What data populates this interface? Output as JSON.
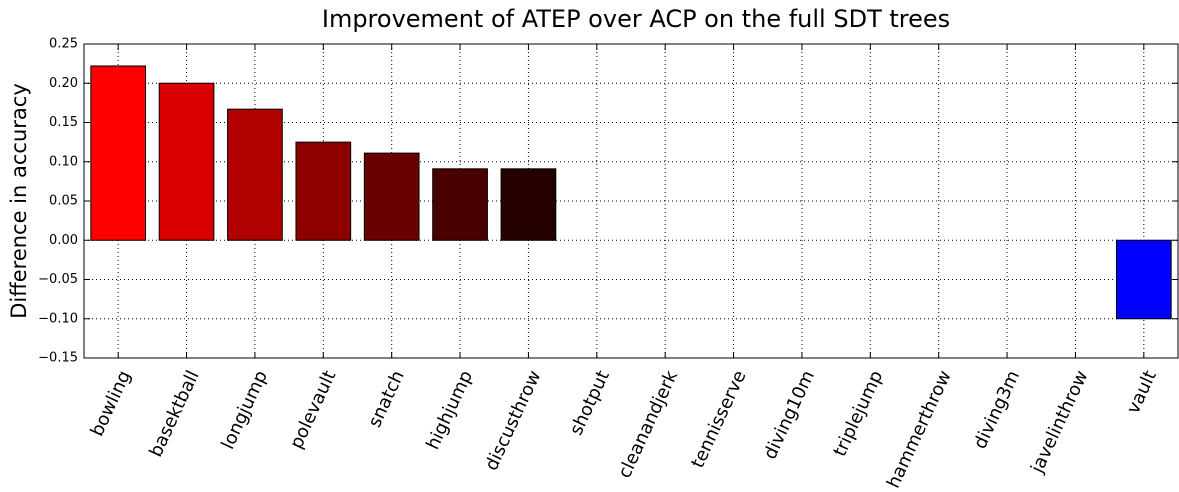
{
  "chart_data": {
    "type": "bar",
    "title": "Improvement of ATEP over ACP on the full SDT trees",
    "y_label": "Difference in accuracy",
    "categories": [
      "bowling",
      "basektball",
      "longjump",
      "polevault",
      "snatch",
      "highjump",
      "discusthrow",
      "shotput",
      "cleanandjerk",
      "tennisserve",
      "diving10m",
      "triplejump",
      "hammerthrow",
      "diving3m",
      "javelinthrow",
      "vault"
    ],
    "values": [
      0.222,
      0.2,
      0.167,
      0.125,
      0.111,
      0.091,
      0.091,
      0,
      0,
      0,
      0,
      0,
      0,
      0,
      0,
      -0.1
    ],
    "colors": [
      "#ff0000",
      "#d80000",
      "#b00000",
      "#8e0000",
      "#6a0000",
      "#480000",
      "#240000",
      "#000000",
      "#000000",
      "#000000",
      "#000000",
      "#000000",
      "#000000",
      "#000000",
      "#000000",
      "#0000ff"
    ],
    "ylim": [
      -0.15,
      0.25
    ],
    "yticks": [
      {
        "value": -0.15,
        "label": "−0.15"
      },
      {
        "value": -0.1,
        "label": "−0.10"
      },
      {
        "value": -0.05,
        "label": "−0.05"
      },
      {
        "value": 0,
        "label": "0.00"
      },
      0.05,
      {
        "value": 0.1,
        "label": "0.10"
      },
      0.15,
      {
        "value": 0.2,
        "label": "0.20"
      },
      0.25
    ],
    "grid": true
  }
}
